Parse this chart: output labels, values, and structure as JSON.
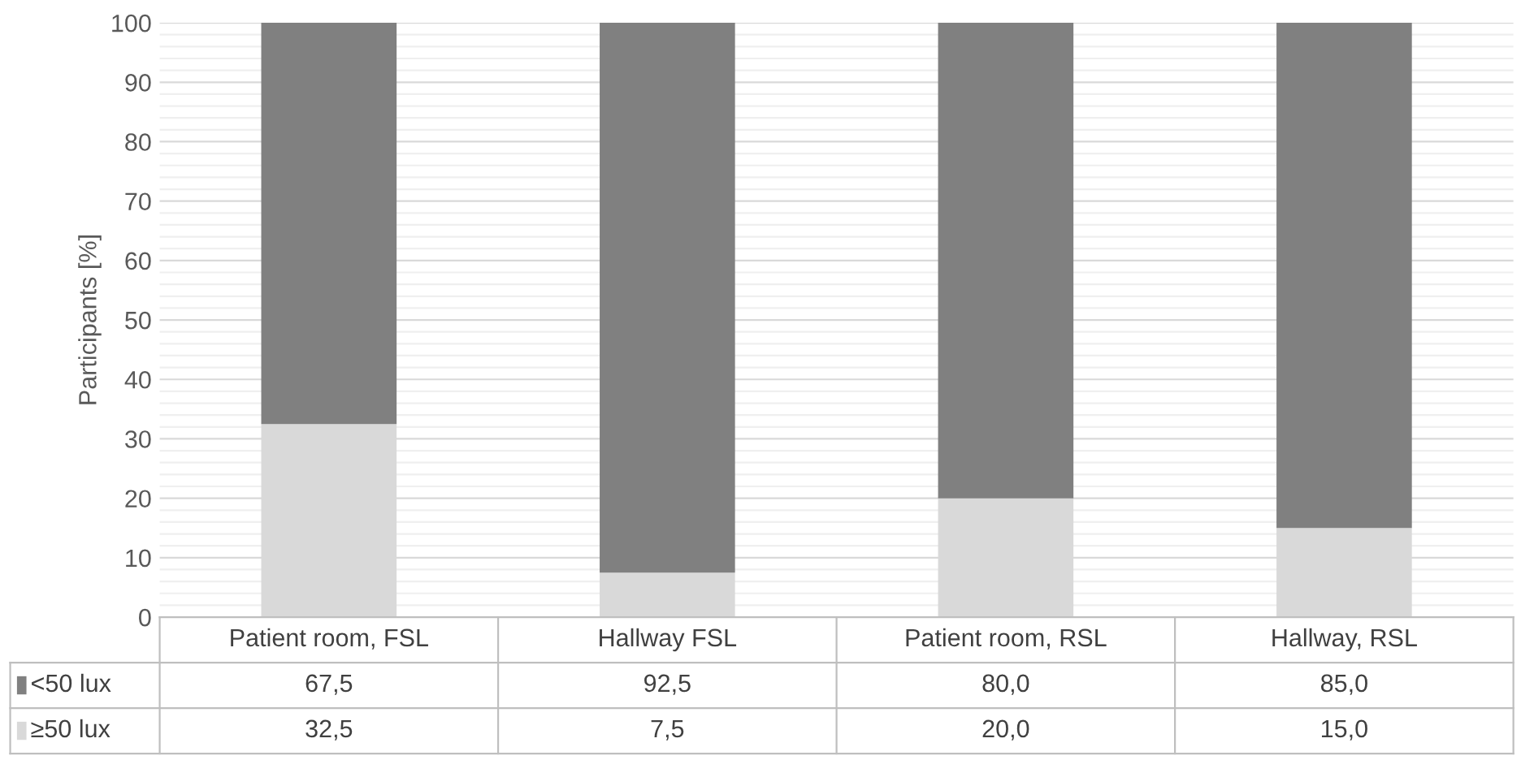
{
  "chart_data": {
    "type": "bar",
    "stacked": true,
    "ylabel": "Participants [%]",
    "categories": [
      "Patient room, FSL",
      "Hallway FSL",
      "Patient room, RSL",
      "Hallway, RSL"
    ],
    "series": [
      {
        "name": "≥50 lux",
        "color": "#d9d9d9",
        "values": [
          32.5,
          7.5,
          20.0,
          15.0
        ],
        "value_labels": [
          "32,5",
          "7,5",
          "20,0",
          "15,0"
        ]
      },
      {
        "name": "<50 lux",
        "color": "#808080",
        "values": [
          67.5,
          92.5,
          80.0,
          85.0
        ],
        "value_labels": [
          "67,5",
          "92,5",
          "80,0",
          "85,0"
        ]
      }
    ],
    "ylim": [
      0,
      100
    ],
    "yticks": [
      0,
      {
        "value": 2,
        "label": null
      },
      {
        "value": 4,
        "label": null
      },
      {
        "value": 6,
        "label": null
      },
      {
        "value": 8,
        "label": null
      },
      10,
      {
        "value": 12,
        "label": null
      },
      {
        "value": 14,
        "label": null
      },
      {
        "value": 16,
        "label": null
      },
      {
        "value": 18,
        "label": null
      },
      20,
      {
        "value": 22,
        "label": null
      },
      {
        "value": 24,
        "label": null
      },
      {
        "value": 26,
        "label": null
      },
      {
        "value": 28,
        "label": null
      },
      30,
      {
        "value": 32,
        "label": null
      },
      {
        "value": 34,
        "label": null
      },
      {
        "value": 36,
        "label": null
      },
      {
        "value": 38,
        "label": null
      },
      40,
      {
        "value": 42,
        "label": null
      },
      {
        "value": 44,
        "label": null
      },
      {
        "value": 46,
        "label": null
      },
      {
        "value": 48,
        "label": null
      },
      50,
      {
        "value": 52,
        "label": null
      },
      {
        "value": 54,
        "label": null
      },
      {
        "value": 56,
        "label": null
      },
      {
        "value": 58,
        "label": null
      },
      60,
      {
        "value": 62,
        "label": null
      },
      {
        "value": 64,
        "label": null
      },
      {
        "value": 66,
        "label": null
      },
      {
        "value": 68,
        "label": null
      },
      70,
      {
        "value": 72,
        "label": null
      },
      {
        "value": 74,
        "label": null
      },
      {
        "value": 76,
        "label": null
      },
      {
        "value": 78,
        "label": null
      },
      80,
      {
        "value": 82,
        "label": null
      },
      {
        "value": 84,
        "label": null
      },
      {
        "value": 86,
        "label": null
      },
      {
        "value": 88,
        "label": null
      },
      90,
      {
        "value": 92,
        "label": null
      },
      {
        "value": 94,
        "label": null
      },
      {
        "value": 96,
        "label": null
      },
      {
        "value": 98,
        "label": null
      },
      100
    ],
    "grid": "y",
    "legend": "bottom"
  }
}
